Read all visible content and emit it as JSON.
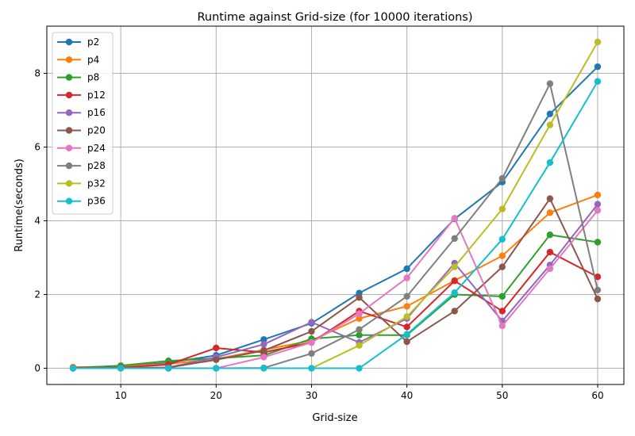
{
  "chart_data": {
    "type": "line",
    "title": "Runtime against Grid-size (for 10000 iterations)",
    "xlabel": "Grid-size",
    "ylabel": "Runtime(seconds)",
    "x": [
      5,
      10,
      15,
      20,
      25,
      30,
      35,
      40,
      45,
      50,
      55,
      60
    ],
    "xlim": [
      2.25,
      62.75
    ],
    "ylim": [
      -0.44,
      9.28
    ],
    "xticks": [
      10,
      20,
      30,
      40,
      50,
      60
    ],
    "yticks": [
      0,
      2,
      4,
      6,
      8
    ],
    "grid": true,
    "legend_position": "top-left",
    "series": [
      {
        "name": "p2",
        "color": "#1f77b4",
        "values": [
          0.01,
          0.05,
          0.15,
          0.35,
          0.78,
          1.22,
          2.04,
          2.7,
          4.05,
          5.05,
          6.9,
          8.18
        ]
      },
      {
        "name": "p4",
        "color": "#ff7f0e",
        "values": [
          0.03,
          0.05,
          0.12,
          0.25,
          0.5,
          0.75,
          1.35,
          1.68,
          2.38,
          3.05,
          4.22,
          4.7
        ]
      },
      {
        "name": "p8",
        "color": "#2ca02c",
        "values": [
          0.01,
          0.07,
          0.2,
          0.27,
          0.35,
          0.8,
          0.9,
          0.9,
          2.0,
          1.95,
          3.62,
          3.42
        ]
      },
      {
        "name": "p12",
        "color": "#d62728",
        "values": [
          0.01,
          0.02,
          0.1,
          0.55,
          0.43,
          0.7,
          1.55,
          1.12,
          2.37,
          1.55,
          3.15,
          2.48
        ]
      },
      {
        "name": "p16",
        "color": "#9467bd",
        "values": [
          0.0,
          0.01,
          0.02,
          0.3,
          0.65,
          1.25,
          0.7,
          1.35,
          2.85,
          1.28,
          2.8,
          4.45
        ]
      },
      {
        "name": "p20",
        "color": "#8c564b",
        "values": [
          0.0,
          0.01,
          0.02,
          0.23,
          0.48,
          1.0,
          1.92,
          0.72,
          1.55,
          2.75,
          4.6,
          1.88
        ]
      },
      {
        "name": "p24",
        "color": "#e377c2",
        "values": [
          0.0,
          0.0,
          0.0,
          0.0,
          0.3,
          0.7,
          1.48,
          2.45,
          4.07,
          1.15,
          2.7,
          4.28
        ]
      },
      {
        "name": "p28",
        "color": "#7f7f7f",
        "values": [
          0.0,
          0.0,
          0.0,
          0.0,
          0.01,
          0.4,
          1.05,
          1.95,
          3.52,
          5.15,
          7.72,
          2.12
        ]
      },
      {
        "name": "p32",
        "color": "#bcbd22",
        "values": [
          0.0,
          0.0,
          0.0,
          0.0,
          0.0,
          0.0,
          0.62,
          1.4,
          2.75,
          4.32,
          6.6,
          8.85
        ]
      },
      {
        "name": "p36",
        "color": "#17becf",
        "values": [
          0.0,
          0.0,
          0.0,
          0.0,
          0.0,
          0.0,
          0.0,
          0.92,
          2.05,
          3.5,
          5.58,
          7.78
        ]
      }
    ]
  }
}
